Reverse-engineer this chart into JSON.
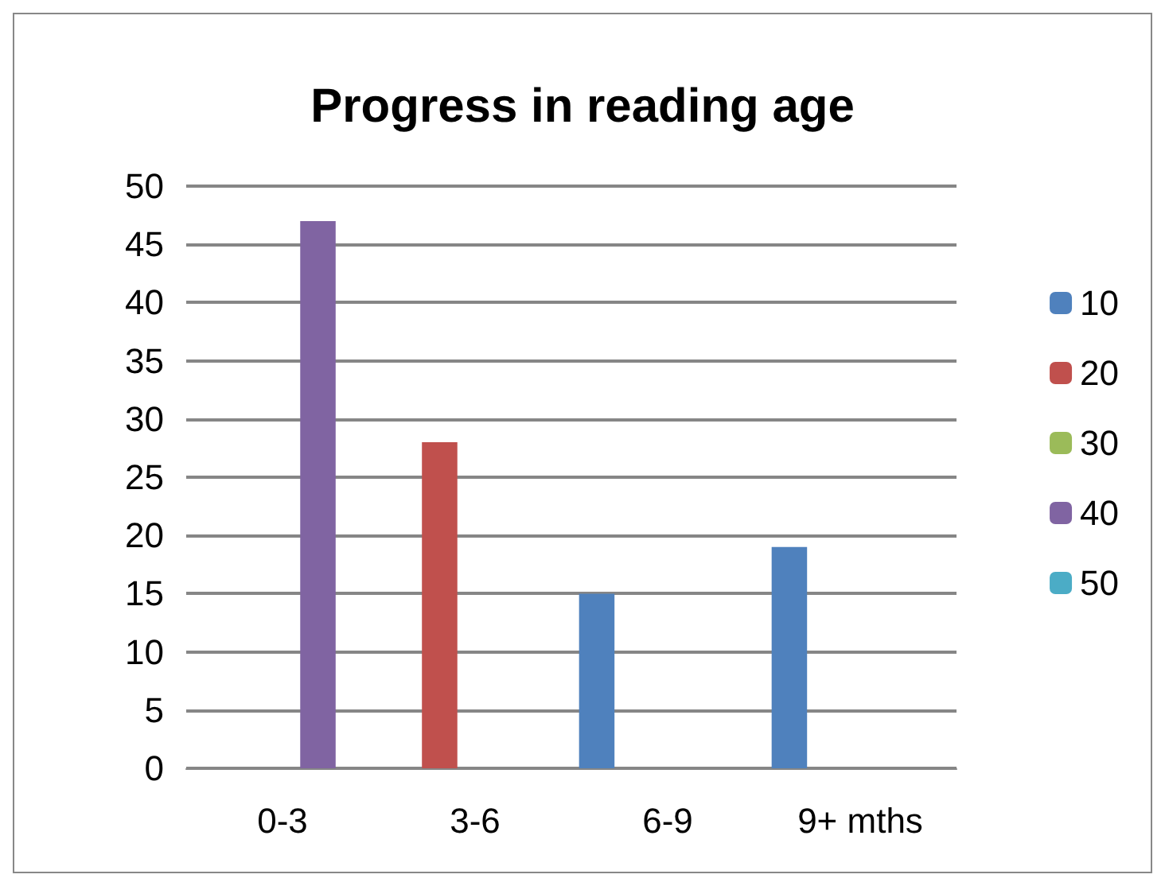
{
  "chart_data": {
    "type": "bar",
    "title": "Progress in reading age",
    "categories": [
      "0-3",
      "3-6",
      "6-9",
      "9+ mths"
    ],
    "series": [
      {
        "name": "10",
        "color": "#4f81bd",
        "values": [
          null,
          null,
          15,
          19
        ]
      },
      {
        "name": "20",
        "color": "#c0504d",
        "values": [
          null,
          28,
          null,
          null
        ]
      },
      {
        "name": "30",
        "color": "#9bbb59",
        "values": [
          null,
          null,
          null,
          null
        ]
      },
      {
        "name": "40",
        "color": "#8064a2",
        "values": [
          47,
          null,
          null,
          null
        ]
      },
      {
        "name": "50",
        "color": "#4bacc6",
        "values": [
          null,
          null,
          null,
          null
        ]
      }
    ],
    "ylim": [
      0,
      50
    ],
    "yticks": [
      0,
      5,
      10,
      15,
      20,
      25,
      30,
      35,
      40,
      45,
      50
    ],
    "grid": "y",
    "legend": "right"
  }
}
